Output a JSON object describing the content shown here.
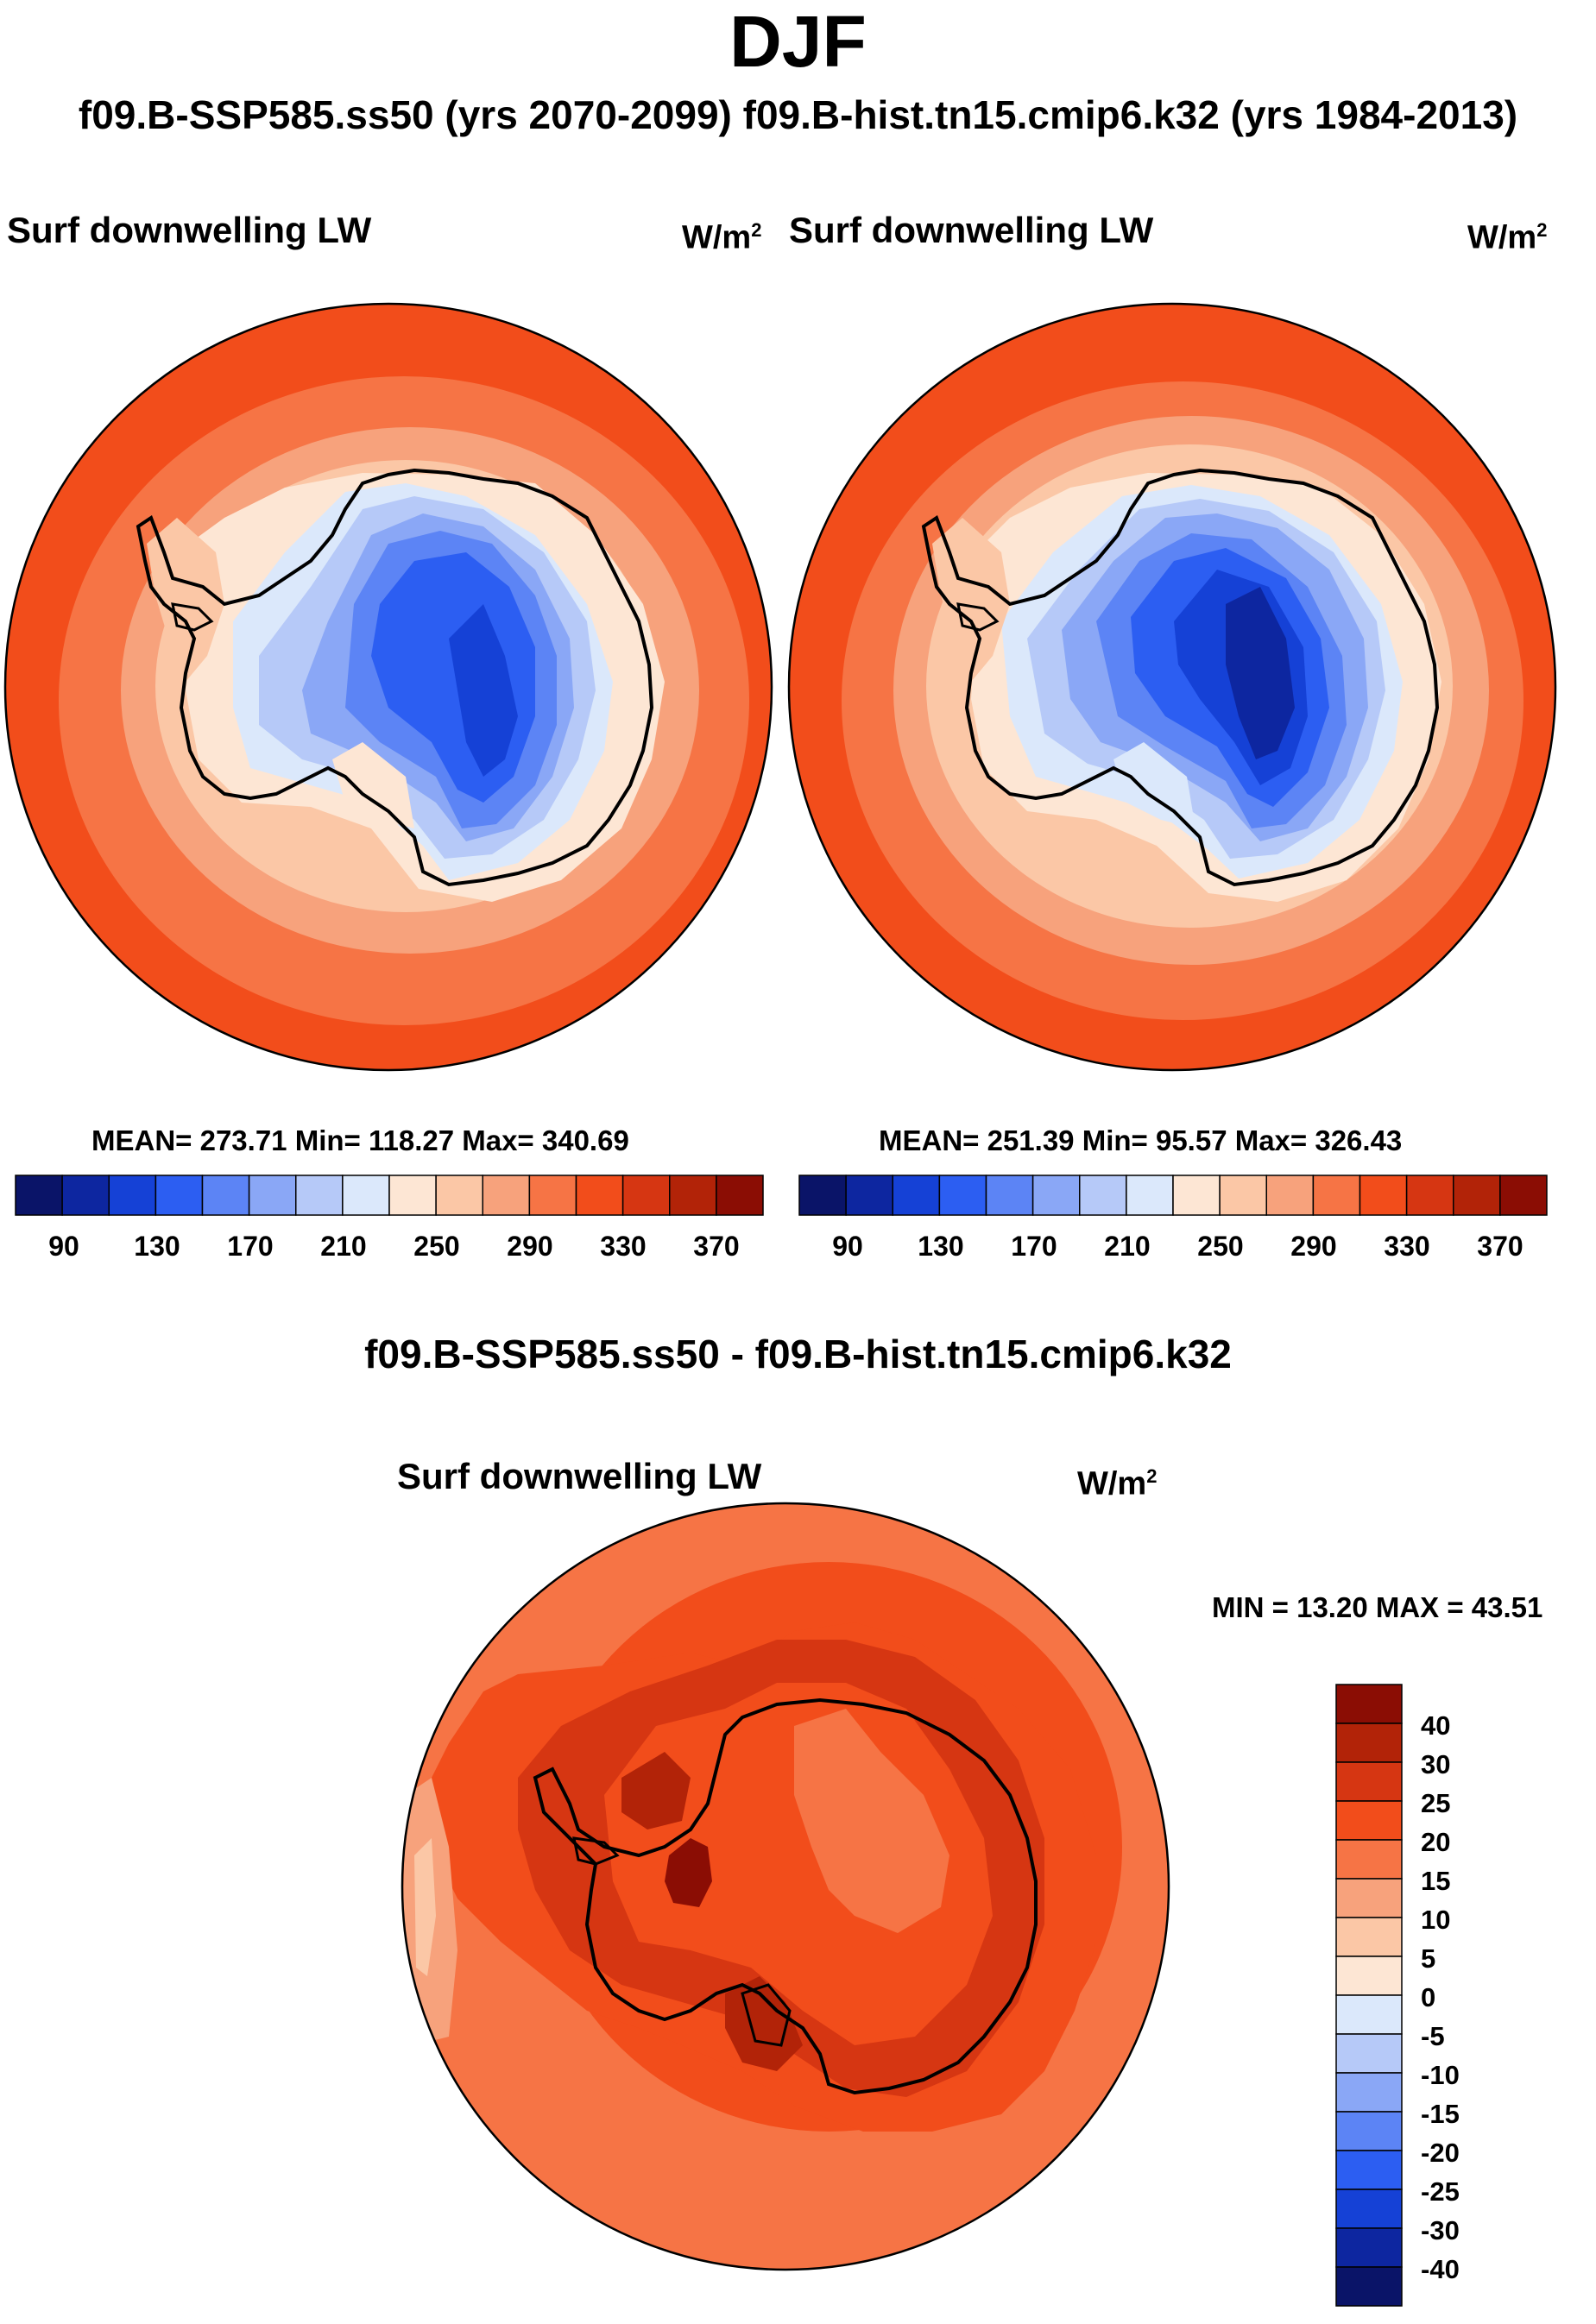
{
  "header": {
    "season": "DJF",
    "subtitle": "f09.B-SSP585.ss50 (yrs 2070-2099)  f09.B-hist.tn15.cmip6.k32 (yrs 1984-2013)"
  },
  "panels": [
    {
      "id": "test",
      "variable": "Surf downwelling LW",
      "units_base": "W/m",
      "units_exp": "2",
      "stats": "MEAN= 273.71  Min= 118.27  Max= 340.69",
      "mean": 273.71,
      "min": 118.27,
      "max": 340.69,
      "colorbar_ticks": [
        "90",
        "130",
        "170",
        "210",
        "250",
        "290",
        "330",
        "370"
      ]
    },
    {
      "id": "control",
      "variable": "Surf downwelling LW",
      "units_base": "W/m",
      "units_exp": "2",
      "stats": "MEAN= 251.39  Min=  95.57  Max= 326.43",
      "mean": 251.39,
      "min": 95.57,
      "max": 326.43,
      "colorbar_ticks": [
        "90",
        "130",
        "170",
        "210",
        "250",
        "290",
        "330",
        "370"
      ]
    }
  ],
  "diff": {
    "title": "f09.B-SSP585.ss50 - f09.B-hist.tn15.cmip6.k32",
    "variable": "Surf downwelling LW",
    "units_base": "W/m",
    "units_exp": "2",
    "minmax": "MIN =  13.20 MAX =  43.51",
    "min": 13.2,
    "max": 43.51,
    "colorbar_ticks": [
      "40",
      "30",
      "25",
      "20",
      "15",
      "10",
      "5",
      "0",
      "-5",
      "-10",
      "-15",
      "-20",
      "-25",
      "-30",
      "-40"
    ]
  },
  "palette": {
    "levels": [
      "#0a1468",
      "#0d26a0",
      "#1541d6",
      "#2c5ef2",
      "#5c84f5",
      "#8aa7f6",
      "#b6c9f8",
      "#dbe8fb",
      "#fde6d4",
      "#fbc7a6",
      "#f7a27c",
      "#f67445",
      "#f24d1b",
      "#d63612",
      "#b22308",
      "#8b0d04"
    ],
    "coastline": "#000000"
  }
}
